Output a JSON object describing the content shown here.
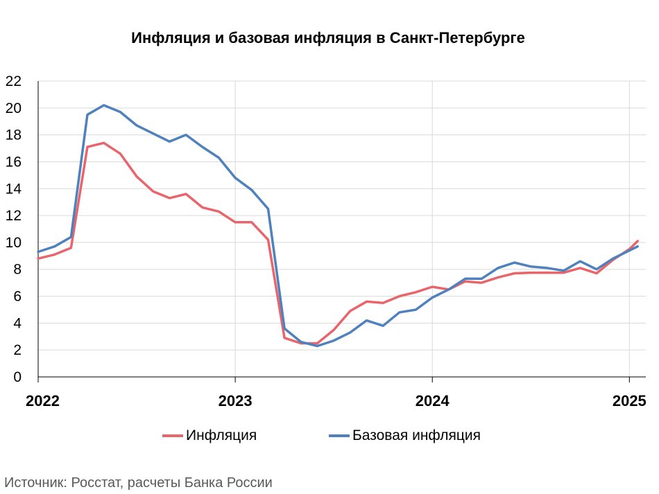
{
  "chart_data": {
    "type": "line",
    "title": "Инфляция и базовая инфляция в Санкт-Петербурге",
    "source": "Источник: Росстат, расчеты Банка России",
    "ylim": [
      0,
      22
    ],
    "yticks": [
      "0",
      "2",
      "4",
      "6",
      "8",
      "10",
      "12",
      "14",
      "16",
      "18",
      "20",
      "22"
    ],
    "xticks": [
      {
        "x": 0,
        "label": "2022"
      },
      {
        "x": 12,
        "label": "2023"
      },
      {
        "x": 24,
        "label": "2024"
      },
      {
        "x": 36,
        "label": "2025"
      }
    ],
    "xlim": [
      0,
      37
    ],
    "grid": true,
    "legend_position": "bottom",
    "x": [
      0,
      1,
      2,
      3,
      4,
      5,
      6,
      7,
      8,
      9,
      10,
      11,
      12,
      13,
      14,
      15,
      16,
      17,
      18,
      19,
      20,
      21,
      22,
      23,
      24,
      25,
      26,
      27,
      28,
      29,
      30,
      31,
      32,
      33,
      34,
      35,
      36,
      36.5
    ],
    "series": [
      {
        "name": "Инфляция",
        "color": "#E8666B",
        "values": [
          8.8,
          9.1,
          9.6,
          17.1,
          17.4,
          16.6,
          14.9,
          13.8,
          13.3,
          13.6,
          12.6,
          12.3,
          11.5,
          11.5,
          10.2,
          2.9,
          2.5,
          2.5,
          3.5,
          4.9,
          5.6,
          5.5,
          6.0,
          6.3,
          6.7,
          6.5,
          7.1,
          7.0,
          7.4,
          7.7,
          7.75,
          7.75,
          7.75,
          8.1,
          7.7,
          8.7,
          9.5,
          10.1
        ]
      },
      {
        "name": "Базовая инфляция",
        "color": "#4F81BD",
        "values": [
          9.3,
          9.7,
          10.4,
          19.5,
          20.2,
          19.7,
          18.7,
          18.1,
          17.5,
          18.0,
          17.1,
          16.3,
          14.8,
          13.9,
          12.5,
          3.6,
          2.6,
          2.3,
          2.7,
          3.3,
          4.2,
          3.8,
          4.8,
          5.0,
          5.9,
          6.5,
          7.3,
          7.3,
          8.1,
          8.5,
          8.2,
          8.1,
          7.9,
          8.6,
          8.0,
          8.8,
          9.4,
          9.7
        ]
      }
    ]
  }
}
